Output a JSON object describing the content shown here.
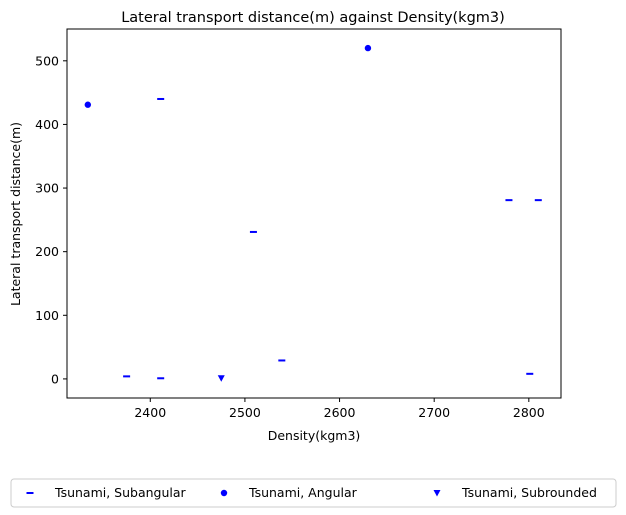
{
  "chart_data": {
    "type": "scatter",
    "title": "Lateral transport distance(m) against Density(kgm3)",
    "xlabel": "Density(kgm3)",
    "ylabel": "Lateral transport distance(m)",
    "xlim": [
      2312,
      2834
    ],
    "ylim": [
      -30,
      550
    ],
    "xticks": [
      2400,
      2500,
      2600,
      2700,
      2800
    ],
    "yticks": [
      0,
      100,
      200,
      300,
      400,
      500
    ],
    "grid": false,
    "legend_position": "bottom",
    "series": [
      {
        "name": "Tsunami, Subangular",
        "marker": "dash",
        "color": "#0000ff",
        "points": [
          {
            "x": 2375,
            "y": 4
          },
          {
            "x": 2411,
            "y": 440
          },
          {
            "x": 2411,
            "y": 1
          },
          {
            "x": 2509,
            "y": 231
          },
          {
            "x": 2539,
            "y": 29
          },
          {
            "x": 2779,
            "y": 281
          },
          {
            "x": 2801,
            "y": 8
          },
          {
            "x": 2810,
            "y": 281
          }
        ]
      },
      {
        "name": "Tsunami, Angular",
        "marker": "circle",
        "color": "#0000ff",
        "points": [
          {
            "x": 2334,
            "y": 431
          },
          {
            "x": 2630,
            "y": 520
          }
        ]
      },
      {
        "name": "Tsunami, Subrounded",
        "marker": "triangle-down",
        "color": "#0000ff",
        "points": [
          {
            "x": 2475,
            "y": 1
          }
        ]
      }
    ]
  }
}
